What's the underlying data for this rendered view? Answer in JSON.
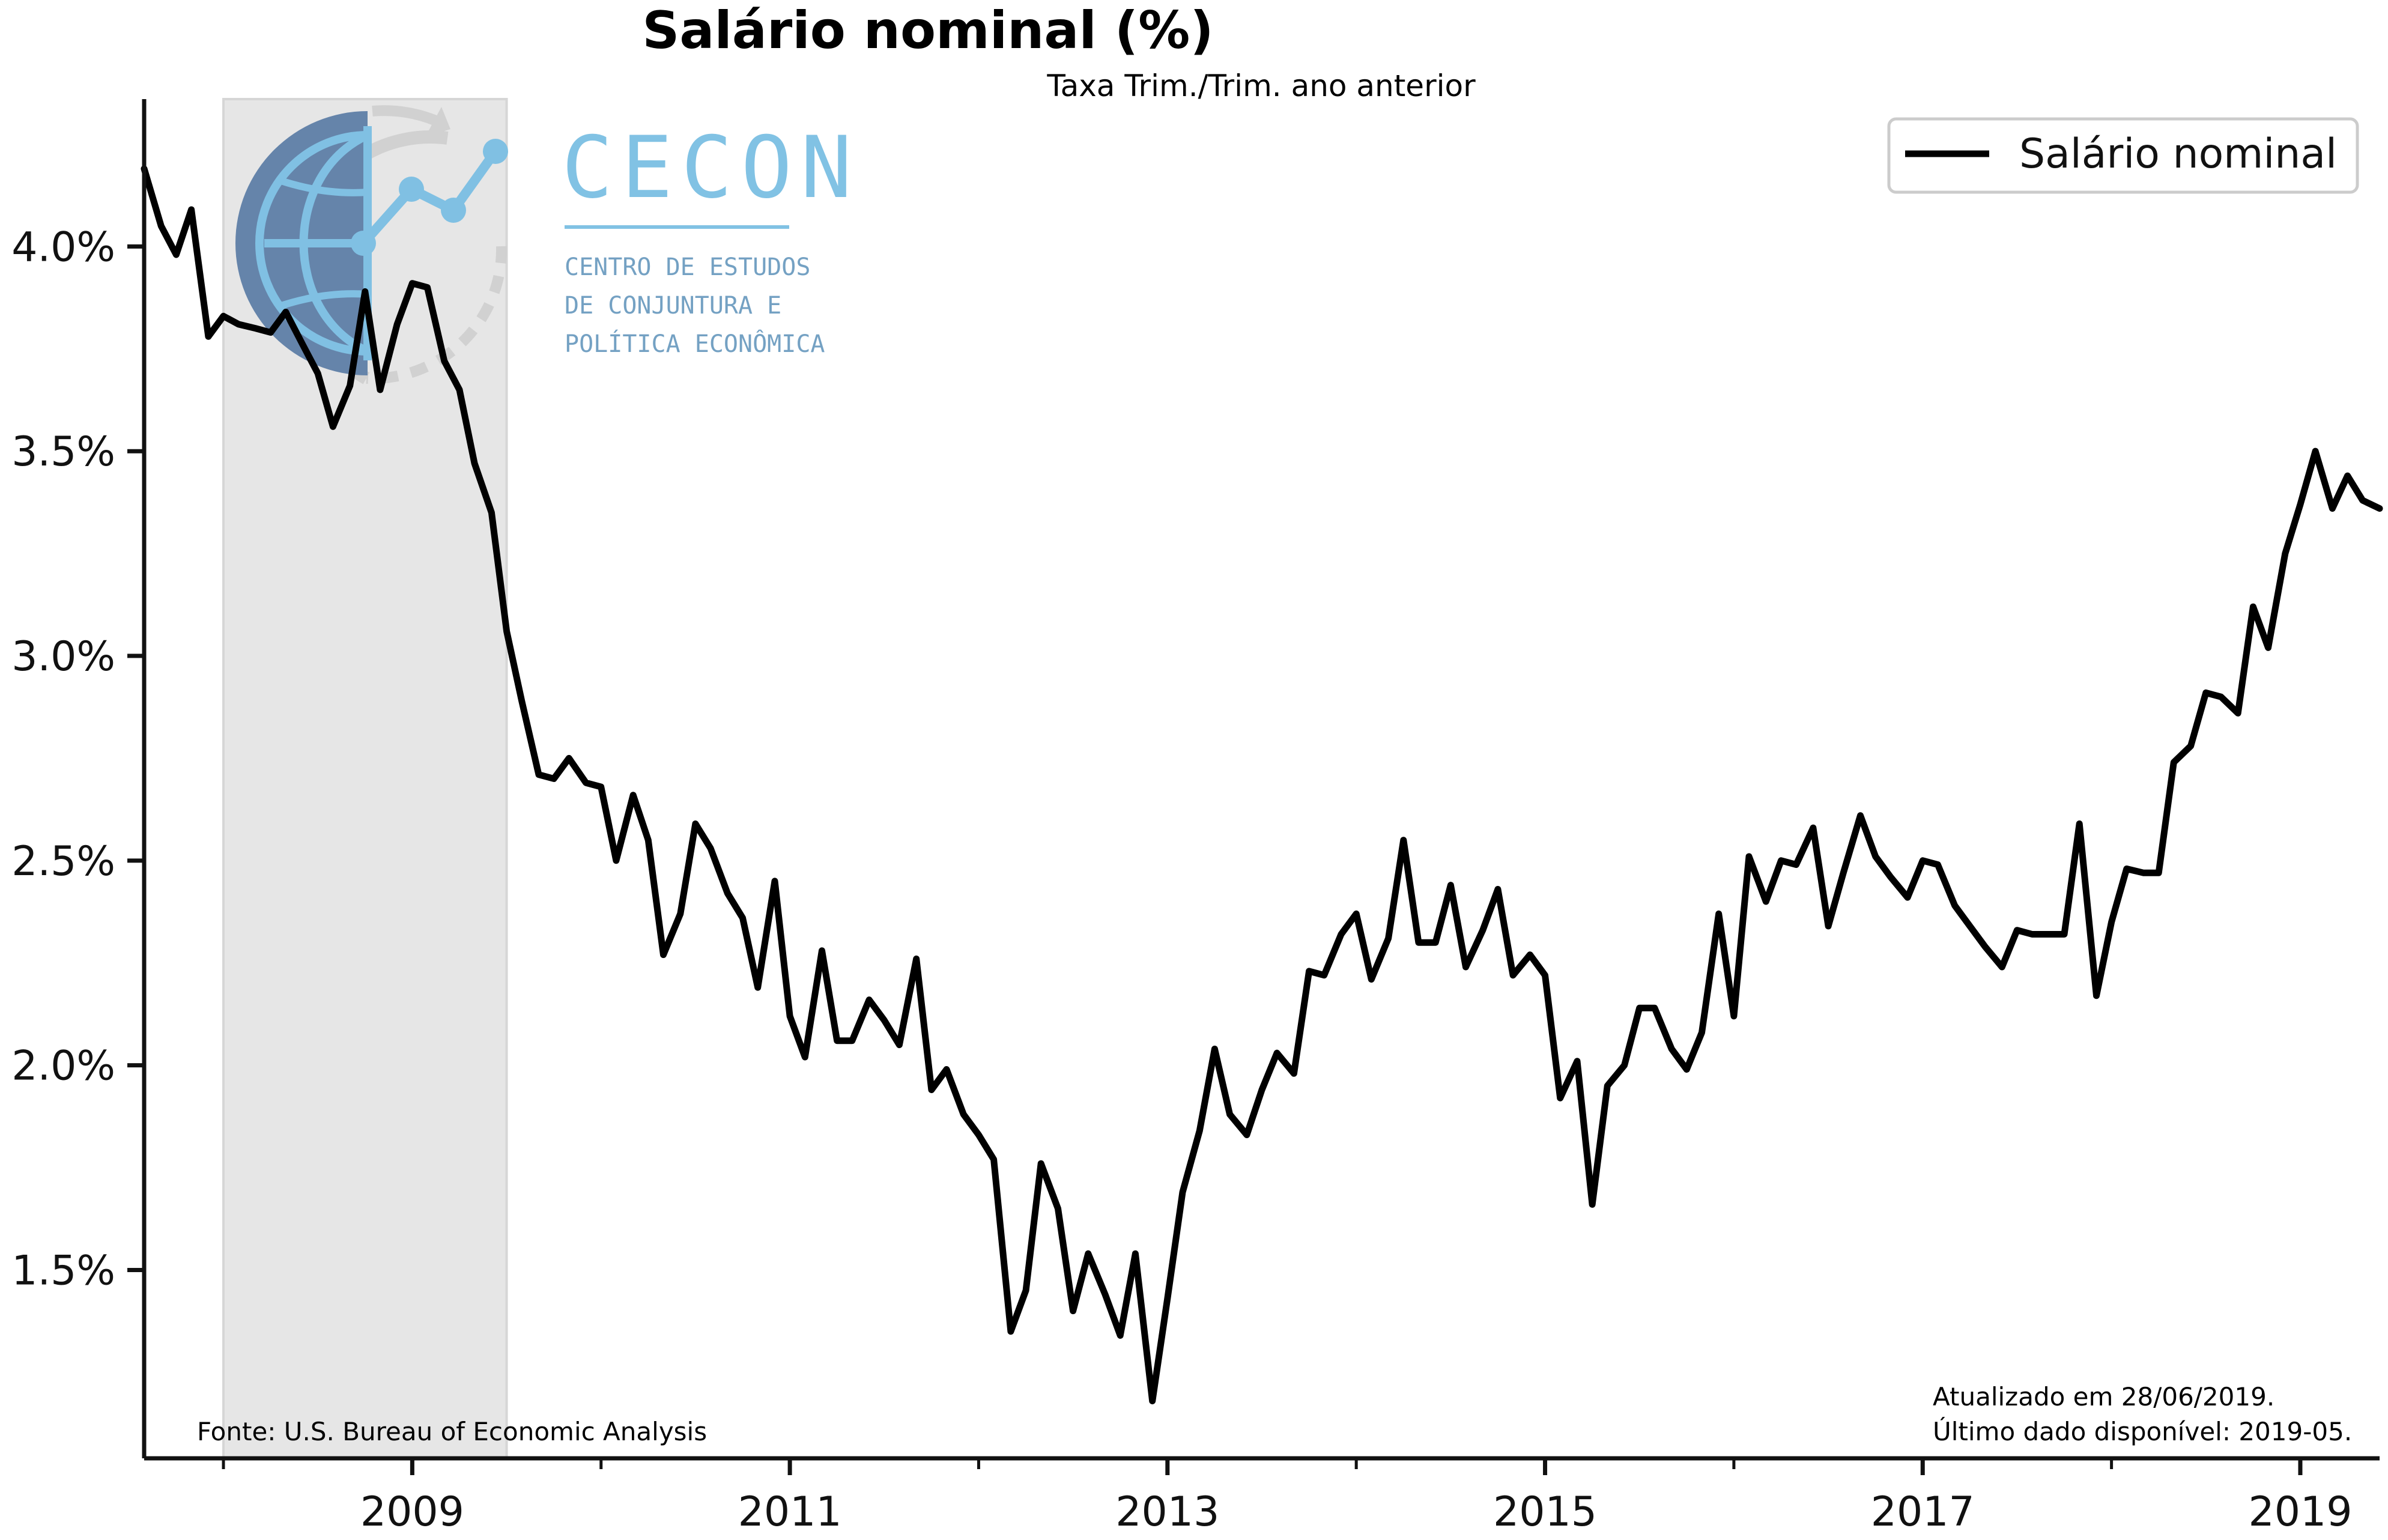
{
  "chart_data": {
    "type": "line",
    "title": "Salário nominal (%)",
    "subtitle": "Taxa Trim./Trim. ano anterior",
    "xlabel": "",
    "ylabel": "",
    "x_range": [
      2007.58,
      2019.42
    ],
    "ylim": [
      1.04,
      4.36
    ],
    "x_ticks_major": [
      2009,
      2011,
      2013,
      2015,
      2017,
      2019
    ],
    "x_ticks_minor": [
      2008,
      2010,
      2012,
      2014,
      2016,
      2018
    ],
    "x_tick_labels": [
      "2009",
      "2011",
      "2013",
      "2015",
      "2017",
      "2019"
    ],
    "y_ticks": [
      1.5,
      2.0,
      2.5,
      3.0,
      3.5,
      4.0
    ],
    "y_tick_labels": [
      "1.5%",
      "2.0%",
      "2.5%",
      "3.0%",
      "3.5%",
      "4.0%"
    ],
    "grid": false,
    "legend_position": "top-right",
    "recession_shading": {
      "start": 2008.0,
      "end": 2009.5,
      "color": "#e6e6e6"
    },
    "series": [
      {
        "name": "Salário nominal",
        "color": "#000000",
        "points": [
          [
            2007.58,
            4.19
          ],
          [
            2007.67,
            4.05
          ],
          [
            2007.75,
            3.98
          ],
          [
            2007.83,
            4.09
          ],
          [
            2007.92,
            3.78
          ],
          [
            2008.0,
            3.83
          ],
          [
            2008.08,
            3.81
          ],
          [
            2008.17,
            3.8
          ],
          [
            2008.25,
            3.79
          ],
          [
            2008.33,
            3.84
          ],
          [
            2008.42,
            3.76
          ],
          [
            2008.5,
            3.69
          ],
          [
            2008.58,
            3.56
          ],
          [
            2008.67,
            3.66
          ],
          [
            2008.75,
            3.89
          ],
          [
            2008.83,
            3.65
          ],
          [
            2008.92,
            3.81
          ],
          [
            2009.0,
            3.91
          ],
          [
            2009.08,
            3.9
          ],
          [
            2009.17,
            3.72
          ],
          [
            2009.25,
            3.65
          ],
          [
            2009.33,
            3.47
          ],
          [
            2009.42,
            3.35
          ],
          [
            2009.5,
            3.06
          ],
          [
            2009.58,
            2.89
          ],
          [
            2009.67,
            2.71
          ],
          [
            2009.75,
            2.7
          ],
          [
            2009.83,
            2.75
          ],
          [
            2009.92,
            2.69
          ],
          [
            2010.0,
            2.68
          ],
          [
            2010.08,
            2.5
          ],
          [
            2010.17,
            2.66
          ],
          [
            2010.25,
            2.55
          ],
          [
            2010.33,
            2.27
          ],
          [
            2010.42,
            2.37
          ],
          [
            2010.5,
            2.59
          ],
          [
            2010.58,
            2.53
          ],
          [
            2010.67,
            2.42
          ],
          [
            2010.75,
            2.36
          ],
          [
            2010.83,
            2.19
          ],
          [
            2010.92,
            2.45
          ],
          [
            2011.0,
            2.12
          ],
          [
            2011.08,
            2.02
          ],
          [
            2011.17,
            2.28
          ],
          [
            2011.25,
            2.06
          ],
          [
            2011.33,
            2.06
          ],
          [
            2011.42,
            2.16
          ],
          [
            2011.5,
            2.11
          ],
          [
            2011.58,
            2.05
          ],
          [
            2011.67,
            2.26
          ],
          [
            2011.75,
            1.94
          ],
          [
            2011.83,
            1.99
          ],
          [
            2011.92,
            1.88
          ],
          [
            2012.0,
            1.83
          ],
          [
            2012.08,
            1.77
          ],
          [
            2012.17,
            1.35
          ],
          [
            2012.25,
            1.45
          ],
          [
            2012.33,
            1.76
          ],
          [
            2012.42,
            1.65
          ],
          [
            2012.5,
            1.4
          ],
          [
            2012.58,
            1.54
          ],
          [
            2012.67,
            1.44
          ],
          [
            2012.75,
            1.34
          ],
          [
            2012.83,
            1.54
          ],
          [
            2012.92,
            1.18
          ],
          [
            2013.0,
            1.43
          ],
          [
            2013.08,
            1.69
          ],
          [
            2013.17,
            1.84
          ],
          [
            2013.25,
            2.04
          ],
          [
            2013.33,
            1.88
          ],
          [
            2013.42,
            1.83
          ],
          [
            2013.5,
            1.94
          ],
          [
            2013.58,
            2.03
          ],
          [
            2013.67,
            1.98
          ],
          [
            2013.75,
            2.23
          ],
          [
            2013.83,
            2.22
          ],
          [
            2013.92,
            2.32
          ],
          [
            2014.0,
            2.37
          ],
          [
            2014.08,
            2.21
          ],
          [
            2014.17,
            2.31
          ],
          [
            2014.25,
            2.55
          ],
          [
            2014.33,
            2.3
          ],
          [
            2014.42,
            2.3
          ],
          [
            2014.5,
            2.44
          ],
          [
            2014.58,
            2.24
          ],
          [
            2014.67,
            2.33
          ],
          [
            2014.75,
            2.43
          ],
          [
            2014.83,
            2.22
          ],
          [
            2014.92,
            2.27
          ],
          [
            2015.0,
            2.22
          ],
          [
            2015.08,
            1.92
          ],
          [
            2015.17,
            2.01
          ],
          [
            2015.25,
            1.66
          ],
          [
            2015.33,
            1.95
          ],
          [
            2015.42,
            2.0
          ],
          [
            2015.5,
            2.14
          ],
          [
            2015.58,
            2.14
          ],
          [
            2015.67,
            2.04
          ],
          [
            2015.75,
            1.99
          ],
          [
            2015.83,
            2.08
          ],
          [
            2015.92,
            2.37
          ],
          [
            2016.0,
            2.12
          ],
          [
            2016.08,
            2.51
          ],
          [
            2016.17,
            2.4
          ],
          [
            2016.25,
            2.5
          ],
          [
            2016.33,
            2.49
          ],
          [
            2016.42,
            2.58
          ],
          [
            2016.5,
            2.34
          ],
          [
            2016.58,
            2.47
          ],
          [
            2016.67,
            2.61
          ],
          [
            2016.75,
            2.51
          ],
          [
            2016.83,
            2.46
          ],
          [
            2016.92,
            2.41
          ],
          [
            2017.0,
            2.5
          ],
          [
            2017.08,
            2.49
          ],
          [
            2017.17,
            2.39
          ],
          [
            2017.25,
            2.34
          ],
          [
            2017.33,
            2.29
          ],
          [
            2017.42,
            2.24
          ],
          [
            2017.5,
            2.33
          ],
          [
            2017.58,
            2.32
          ],
          [
            2017.67,
            2.32
          ],
          [
            2017.75,
            2.32
          ],
          [
            2017.83,
            2.59
          ],
          [
            2017.92,
            2.17
          ],
          [
            2018.0,
            2.35
          ],
          [
            2018.08,
            2.48
          ],
          [
            2018.17,
            2.47
          ],
          [
            2018.25,
            2.47
          ],
          [
            2018.33,
            2.74
          ],
          [
            2018.42,
            2.78
          ],
          [
            2018.5,
            2.91
          ],
          [
            2018.58,
            2.9
          ],
          [
            2018.67,
            2.86
          ],
          [
            2018.75,
            3.12
          ],
          [
            2018.83,
            3.02
          ],
          [
            2018.92,
            3.25
          ],
          [
            2019.0,
            3.37
          ],
          [
            2019.08,
            3.5
          ],
          [
            2019.17,
            3.36
          ],
          [
            2019.25,
            3.44
          ],
          [
            2019.33,
            3.38
          ],
          [
            2019.42,
            3.36
          ]
        ]
      }
    ],
    "annotations": {
      "source": "Fonte: U.S. Bureau of Economic Analysis",
      "updated": "Atualizado em 28/06/2019.",
      "last_data": "Último dado disponível: 2019-05."
    }
  },
  "logo": {
    "name": "CECON",
    "line1": "CENTRO DE ESTUDOS",
    "line2": "DE CONJUNTURA E",
    "line3": "POLÍTICA ECONÔMICA",
    "primary_color": "#7bbfe3",
    "secondary_color": "#6d9cc0"
  }
}
